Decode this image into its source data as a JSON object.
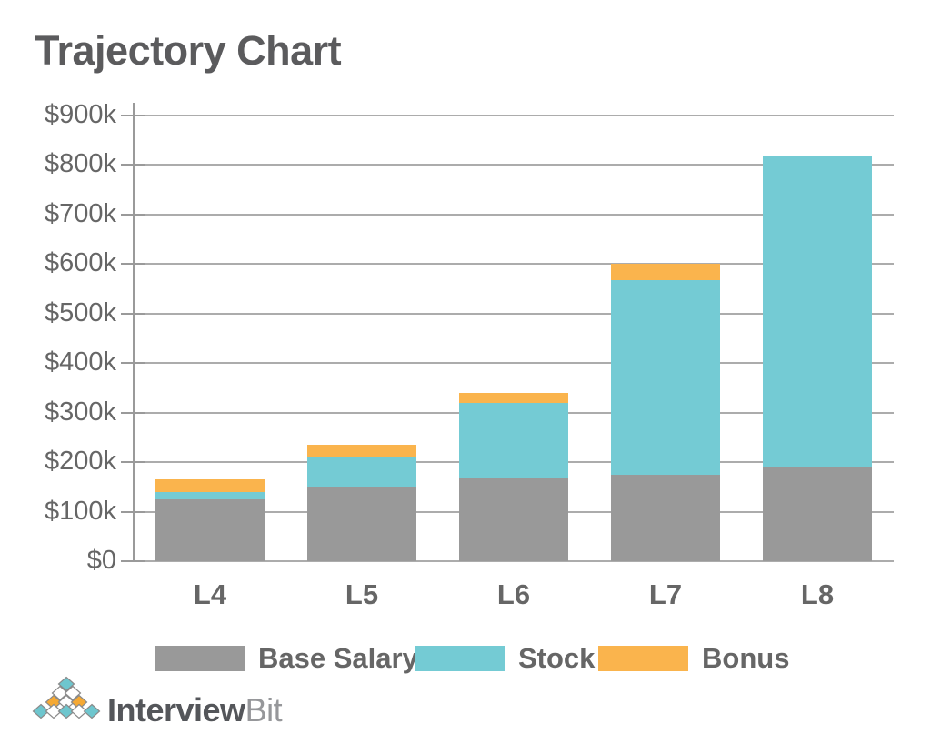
{
  "chart_data": {
    "type": "bar",
    "stacked": true,
    "title": "Trajectory Chart",
    "categories": [
      "L4",
      "L5",
      "L6",
      "L7",
      "L8"
    ],
    "series": [
      {
        "name": "Base Salary",
        "color": "#999999",
        "values": [
          125,
          150,
          168,
          175,
          190
        ]
      },
      {
        "name": "Stock",
        "color": "#74CBD4",
        "values": [
          15,
          62,
          152,
          393,
          630
        ]
      },
      {
        "name": "Bonus",
        "color": "#FAB44D",
        "values": [
          25,
          23,
          20,
          32,
          0
        ]
      }
    ],
    "stack_totals": [
      165,
      235,
      340,
      600,
      820
    ],
    "unit": "USD thousands",
    "ylim": [
      0,
      900
    ],
    "y_tick_step": 100,
    "y_tick_labels": [
      "$0",
      "$100k",
      "$200k",
      "$300k",
      "$400k",
      "$500k",
      "$600k",
      "$700k",
      "$800k",
      "$900k"
    ],
    "grid": true,
    "legend_position": "bottom",
    "legend": [
      "Base Salary",
      "Stock",
      "Bonus"
    ]
  },
  "branding": {
    "name_primary": "Interview",
    "name_secondary": "Bit",
    "logo_rows": [
      [
        "teal"
      ],
      [
        "white",
        "white"
      ],
      [
        "orange",
        "white",
        "orange"
      ],
      [
        "teal",
        "white",
        "teal",
        "white",
        "teal"
      ]
    ],
    "logo_colors": {
      "teal": "#6EC6CE",
      "orange": "#F5A934",
      "white": "#FFFFFF",
      "outline": "#8A8A8A"
    }
  },
  "colors": {
    "title": "#5B5B5D",
    "axis_text": "#666666",
    "gridline": "#ACACAC",
    "axis_line": "#9A9A9A"
  }
}
